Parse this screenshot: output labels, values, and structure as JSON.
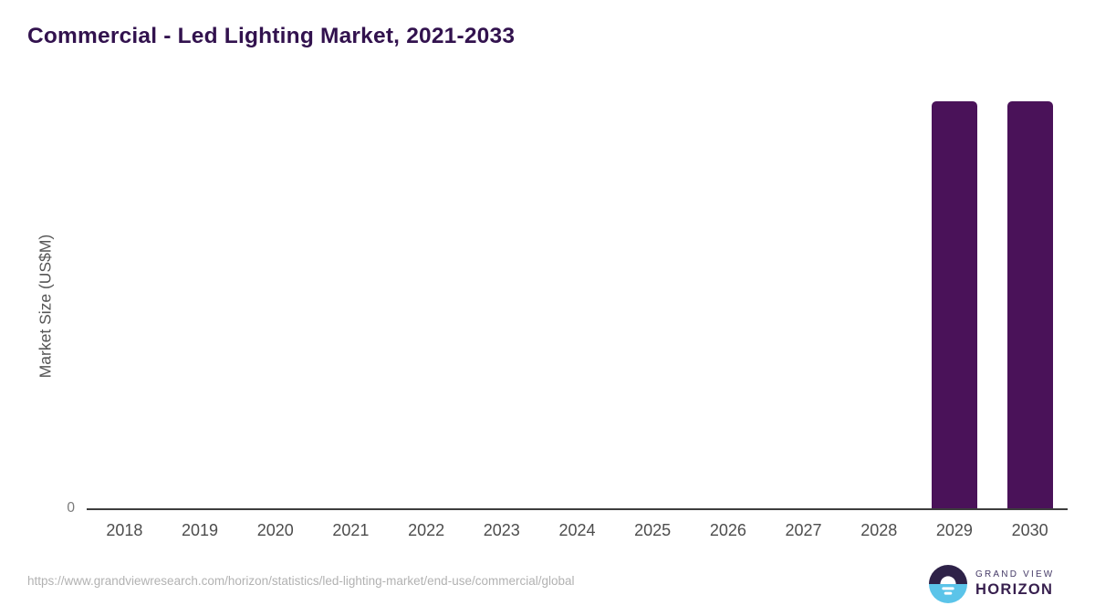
{
  "page": {
    "title": "Commercial - Led Lighting Market, 2021-2033",
    "source_url": "https://www.grandviewresearch.com/horizon/statistics/led-lighting-market/end-use/commercial/global"
  },
  "logo": {
    "name": "grand-view-horizon-logo",
    "line1": "GRAND VIEW",
    "line2": "HORIZON"
  },
  "colors": {
    "bar": "#4a1259",
    "title_text": "#32124e",
    "axis_line": "#3d3d3d",
    "tick_text": "#4d4d4d",
    "y_tick_text": "#7a7a7a",
    "url_text": "#b2b2b2",
    "logo_dark": "#2e2248",
    "logo_blue": "#5bc4e9"
  },
  "chart_data": {
    "type": "bar",
    "title": "Commercial - Led Lighting Market, 2021-2033",
    "xlabel": "",
    "ylabel": "Market Size (US$M)",
    "categories": [
      "2018",
      "2019",
      "2020",
      "2021",
      "2022",
      "2023",
      "2024",
      "2025",
      "2026",
      "2027",
      "2028",
      "2029",
      "2030"
    ],
    "values": [
      null,
      null,
      null,
      null,
      null,
      null,
      null,
      null,
      null,
      null,
      null,
      1,
      1
    ],
    "value_unit": "relative (bars drawn at full plot height; numeric values not labeled on chart)",
    "y_tick_labels": [
      "0"
    ],
    "grid": false,
    "legend": false,
    "bar_color": "#4a1259"
  }
}
